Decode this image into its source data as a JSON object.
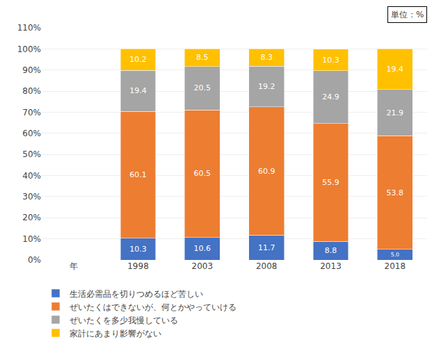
{
  "chart_data": {
    "type": "bar",
    "stacked": true,
    "data_labels": true,
    "grid": true,
    "legend": "bottom",
    "categories": [
      "年",
      "1998",
      "2003",
      "2008",
      "2013",
      "2018"
    ],
    "series": [
      {
        "name": "生活必需品を切りつめるほど苦しい",
        "color": "#4472C4",
        "values": [
          null,
          10.3,
          10.6,
          11.7,
          8.8,
          5.0
        ],
        "value_labels": [
          null,
          "10.3",
          "10.6",
          "11.7",
          "8.8",
          "5.0"
        ]
      },
      {
        "name": "ぜいたくはできないが、何とかやっていける",
        "color": "#ED7D31",
        "values": [
          null,
          60.1,
          60.5,
          60.9,
          55.9,
          53.8
        ],
        "value_labels": [
          null,
          "60.1",
          "60.5",
          "60.9",
          "55.9",
          "53.8"
        ]
      },
      {
        "name": "ぜいたくを多少我慢している",
        "color": "#A5A5A5",
        "values": [
          null,
          19.4,
          20.5,
          19.2,
          24.9,
          21.9
        ],
        "value_labels": [
          null,
          "19.4",
          "20.5",
          "19.2",
          "24.9",
          "21.9"
        ]
      },
      {
        "name": "家計にあまり影響がない",
        "color": "#FFC000",
        "values": [
          null,
          10.2,
          8.5,
          8.3,
          10.3,
          19.4
        ],
        "value_labels": [
          null,
          "10.2",
          "8.5",
          "8.3",
          "10.3",
          "19.4"
        ]
      }
    ],
    "ylim": [
      0,
      110
    ],
    "yticks": [
      {
        "value": 0,
        "label": "0%"
      },
      {
        "value": 10,
        "label": "10%"
      },
      {
        "value": 20,
        "label": "20%"
      },
      {
        "value": 30,
        "label": "30%"
      },
      {
        "value": 40,
        "label": "40%"
      },
      {
        "value": 50,
        "label": "50%"
      },
      {
        "value": 60,
        "label": "60%"
      },
      {
        "value": 70,
        "label": "70%"
      },
      {
        "value": 80,
        "label": "80%"
      },
      {
        "value": 90,
        "label": "90%"
      },
      {
        "value": 100,
        "label": "100%"
      },
      {
        "value": 110,
        "label": "110%"
      }
    ],
    "annotations": [
      "単位：%"
    ]
  }
}
